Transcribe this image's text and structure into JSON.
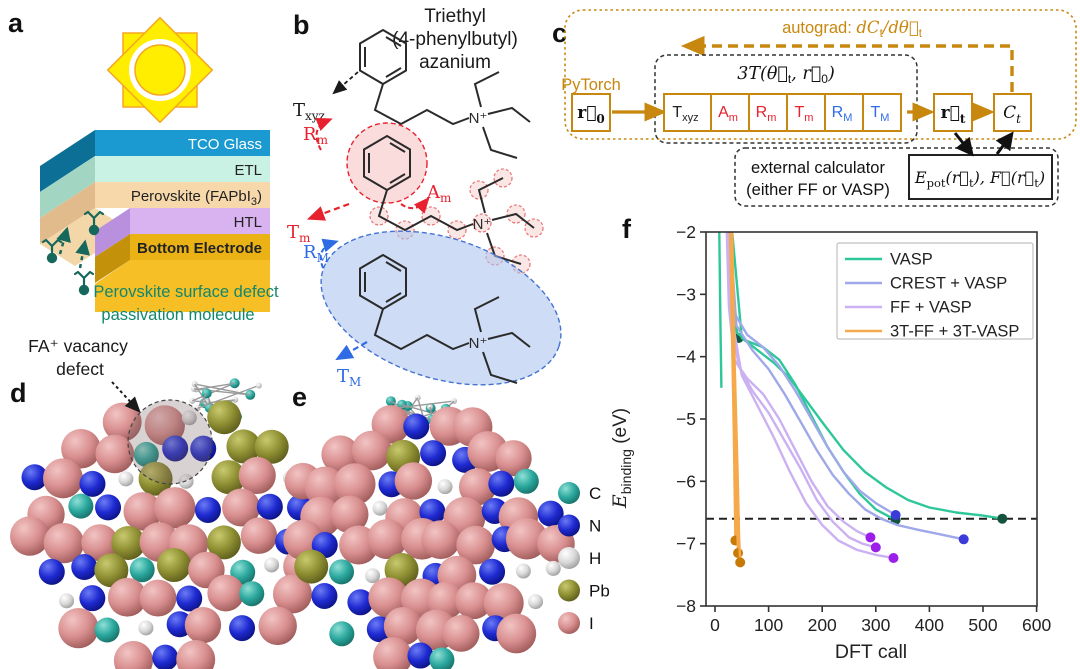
{
  "panel_a": {
    "label": "a",
    "layers": [
      {
        "name": "TCO Glass",
        "color": "#1b9ad1",
        "side": "#0c6f96",
        "text_color": "#ffffff"
      },
      {
        "name": "ETL",
        "color": "#c9f2e4",
        "side": "#a3d6c2",
        "text_color": "#222222"
      },
      {
        "name_pre": "Perovskite (FAPbI",
        "name_sub": "3",
        "name_post": ")",
        "color": "#f6d8ab",
        "side": "#e2bb8c",
        "text_color": "#222222"
      },
      {
        "name": "HTL",
        "color": "#d9b3f0",
        "side": "#b890dd",
        "text_color": "#222222"
      },
      {
        "name": "Bottom Electrode",
        "color": "#eab215",
        "side": "#c3920a",
        "text_color": "#222222"
      }
    ],
    "slab_color": "#f6bf26",
    "molecule_color": "#15685b",
    "caption_color": "#12876d",
    "caption_line1": "Perovskite surface defect",
    "caption_line2": "passivation molecule"
  },
  "panel_b": {
    "label": "b",
    "title_line1": "Triethyl",
    "title_line2": "(4-phenylbutyl)",
    "title_line3": "azanium",
    "nitrogen": "N⁺",
    "t_xyz": {
      "main": "T",
      "sub": "xyz"
    },
    "r_m": {
      "main": "R",
      "sub": "m"
    },
    "a_m": {
      "main": "A",
      "sub": "m"
    },
    "t_m": {
      "main": "T",
      "sub": "m"
    },
    "r_M": {
      "main": "R",
      "sub": "M"
    },
    "t_M": {
      "main": "T",
      "sub": "M"
    },
    "red": "#e8212e",
    "blue": "#2f6be4"
  },
  "panel_c": {
    "label": "c",
    "accent": "#c8870e",
    "pytorch": "PyTorch",
    "autograd": {
      "prefix": "autograd: ",
      "m1": "dC",
      "s1": "t",
      "m2": "/dθ⃗",
      "s2": "t"
    },
    "transform_label": {
      "m1": "3T(θ⃗",
      "s1": "t",
      "m2": ", r⃗",
      "s2": "0",
      "m3": ")"
    },
    "input_box": {
      "m": "r⃗",
      "s": "0"
    },
    "param_boxes": [
      {
        "m": "T",
        "s": "xyz",
        "color": "#222222"
      },
      {
        "m": "A",
        "s": "m",
        "color": "#e8212e"
      },
      {
        "m": "R",
        "s": "m",
        "color": "#e8212e"
      },
      {
        "m": "T",
        "s": "m",
        "color": "#e8212e"
      },
      {
        "m": "R",
        "s": "M",
        "color": "#2f6be4"
      },
      {
        "m": "T",
        "s": "M",
        "color": "#2f6be4"
      }
    ],
    "coords_box": {
      "m": "r⃗",
      "s": "t"
    },
    "cost_box": {
      "m": "C",
      "s": "t"
    },
    "external_line1": "external calculator",
    "external_line2": "(either FF or VASP)",
    "energy_box": {
      "m1": "E",
      "s1": "pot",
      "m2": "(r⃗",
      "s2": "t",
      "m3": "), F⃗(r⃗",
      "s3": "t",
      "m4": ")"
    }
  },
  "panel_d": {
    "label": "d",
    "annotation_line1": "FA⁺ vacancy",
    "annotation_line2": "defect"
  },
  "panel_e": {
    "label": "e"
  },
  "atom_legend": {
    "entries": [
      {
        "symbol": "C",
        "color": "#2ba89e"
      },
      {
        "symbol": "N",
        "color": "#1e2ad1"
      },
      {
        "symbol": "H",
        "color": "#d9d9d9"
      },
      {
        "symbol": "Pb",
        "color": "#8f8f33"
      },
      {
        "symbol": "I",
        "color": "#d98f8f"
      }
    ]
  },
  "panel_f": {
    "label": "f"
  },
  "chart_data": {
    "type": "line",
    "title": "",
    "xlabel": "DFT call",
    "ylabel": "E_binding (eV)",
    "ylabel_main": "E",
    "ylabel_sub": "binding",
    "ylabel_unit": " (eV)",
    "xlim": [
      0,
      600
    ],
    "ylim": [
      -8,
      -2
    ],
    "xticks": [
      0,
      100,
      200,
      300,
      400,
      500,
      600
    ],
    "yticks": [
      -2,
      -3,
      -4,
      -5,
      -6,
      -7,
      -8
    ],
    "grid": false,
    "legend_position": "upper right",
    "reference_line_y": -6.6,
    "series": [
      {
        "name": "VASP",
        "color": "#2ec79a",
        "dot_color": "#14543f",
        "runs": [
          {
            "points": [
              [
                8,
                -2
              ],
              [
                10,
                -3.45
              ],
              [
                12,
                -4.5
              ]
            ],
            "end_dot": false
          },
          {
            "points": [
              [
                30,
                -2
              ],
              [
                34,
                -3.2
              ],
              [
                40,
                -3.55
              ],
              [
                44,
                -3.7
              ]
            ],
            "end_dot": true
          },
          {
            "points": [
              [
                30,
                -2
              ],
              [
                38,
                -3.6
              ],
              [
                60,
                -3.75
              ],
              [
                90,
                -3.85
              ],
              [
                120,
                -4.05
              ],
              [
                150,
                -4.45
              ],
              [
                180,
                -4.95
              ],
              [
                210,
                -5.45
              ],
              [
                240,
                -5.85
              ],
              [
                270,
                -6.2
              ],
              [
                300,
                -6.45
              ],
              [
                337,
                -6.62
              ]
            ],
            "end_dot": true
          },
          {
            "points": [
              [
                32,
                -2
              ],
              [
                50,
                -3.7
              ],
              [
                80,
                -3.9
              ],
              [
                110,
                -4.1
              ],
              [
                140,
                -4.35
              ],
              [
                170,
                -4.7
              ],
              [
                200,
                -5.05
              ],
              [
                240,
                -5.5
              ],
              [
                280,
                -5.85
              ],
              [
                320,
                -6.1
              ],
              [
                360,
                -6.3
              ],
              [
                400,
                -6.42
              ],
              [
                450,
                -6.5
              ],
              [
                500,
                -6.55
              ],
              [
                536,
                -6.6
              ]
            ],
            "end_dot": true
          }
        ]
      },
      {
        "name": "CREST + VASP",
        "color": "#9fa8e8",
        "dot_color": "#3b3bd9",
        "runs": [
          {
            "points": [
              [
                28,
                -2
              ],
              [
                36,
                -3.3
              ],
              [
                60,
                -3.65
              ],
              [
                90,
                -3.85
              ],
              [
                120,
                -4.15
              ],
              [
                150,
                -4.55
              ],
              [
                180,
                -5.0
              ],
              [
                210,
                -5.45
              ],
              [
                240,
                -5.85
              ],
              [
                270,
                -6.15
              ],
              [
                300,
                -6.35
              ],
              [
                337,
                -6.54
              ]
            ],
            "end_dot": true
          },
          {
            "points": [
              [
                28,
                -2
              ],
              [
                40,
                -3.5
              ],
              [
                70,
                -3.9
              ],
              [
                100,
                -4.2
              ],
              [
                130,
                -4.6
              ],
              [
                160,
                -5.05
              ],
              [
                190,
                -5.5
              ],
              [
                220,
                -5.9
              ],
              [
                250,
                -6.2
              ],
              [
                280,
                -6.45
              ],
              [
                310,
                -6.6
              ],
              [
                340,
                -6.7
              ],
              [
                380,
                -6.78
              ],
              [
                420,
                -6.85
              ],
              [
                464,
                -6.93
              ]
            ],
            "end_dot": true
          }
        ]
      },
      {
        "name": "FF + VASP",
        "color": "#cbb0f2",
        "dot_color": "#9b1fe8",
        "runs": [
          {
            "points": [
              [
                22,
                -2
              ],
              [
                26,
                -3.2
              ],
              [
                36,
                -4.05
              ],
              [
                60,
                -4.35
              ],
              [
                90,
                -4.6
              ],
              [
                120,
                -5.0
              ],
              [
                150,
                -5.5
              ],
              [
                180,
                -6.0
              ],
              [
                210,
                -6.4
              ],
              [
                240,
                -6.65
              ],
              [
                265,
                -6.8
              ],
              [
                290,
                -6.9
              ]
            ],
            "end_dot": true
          },
          {
            "points": [
              [
                24,
                -2
              ],
              [
                30,
                -3.35
              ],
              [
                44,
                -4.15
              ],
              [
                70,
                -4.55
              ],
              [
                100,
                -4.9
              ],
              [
                130,
                -5.35
              ],
              [
                160,
                -5.8
              ],
              [
                190,
                -6.3
              ],
              [
                220,
                -6.65
              ],
              [
                250,
                -6.9
              ],
              [
                275,
                -7.0
              ],
              [
                300,
                -7.06
              ]
            ],
            "end_dot": true
          },
          {
            "points": [
              [
                26,
                -2
              ],
              [
                34,
                -3.5
              ],
              [
                50,
                -4.3
              ],
              [
                80,
                -4.8
              ],
              [
                110,
                -5.3
              ],
              [
                140,
                -5.85
              ],
              [
                170,
                -6.35
              ],
              [
                200,
                -6.7
              ],
              [
                230,
                -6.95
              ],
              [
                265,
                -7.1
              ],
              [
                300,
                -7.18
              ],
              [
                333,
                -7.23
              ]
            ],
            "end_dot": true
          }
        ]
      },
      {
        "name": "3T-FF + 3T-VASP",
        "color": "#f5a94b",
        "dot_color": "#c77b06",
        "runs": [
          {
            "points": [
              [
                28,
                -2
              ],
              [
                32,
                -3.8
              ],
              [
                35,
                -5.2
              ],
              [
                37,
                -6.3
              ],
              [
                38,
                -6.95
              ]
            ],
            "end_dot": true
          },
          {
            "points": [
              [
                30,
                -2
              ],
              [
                34,
                -4.0
              ],
              [
                38,
                -5.5
              ],
              [
                41,
                -6.6
              ],
              [
                43,
                -7.15
              ]
            ],
            "end_dot": true
          },
          {
            "points": [
              [
                32,
                -2
              ],
              [
                37,
                -4.2
              ],
              [
                42,
                -5.8
              ],
              [
                45,
                -6.9
              ],
              [
                47,
                -7.3
              ]
            ],
            "end_dot": true
          }
        ]
      }
    ]
  }
}
